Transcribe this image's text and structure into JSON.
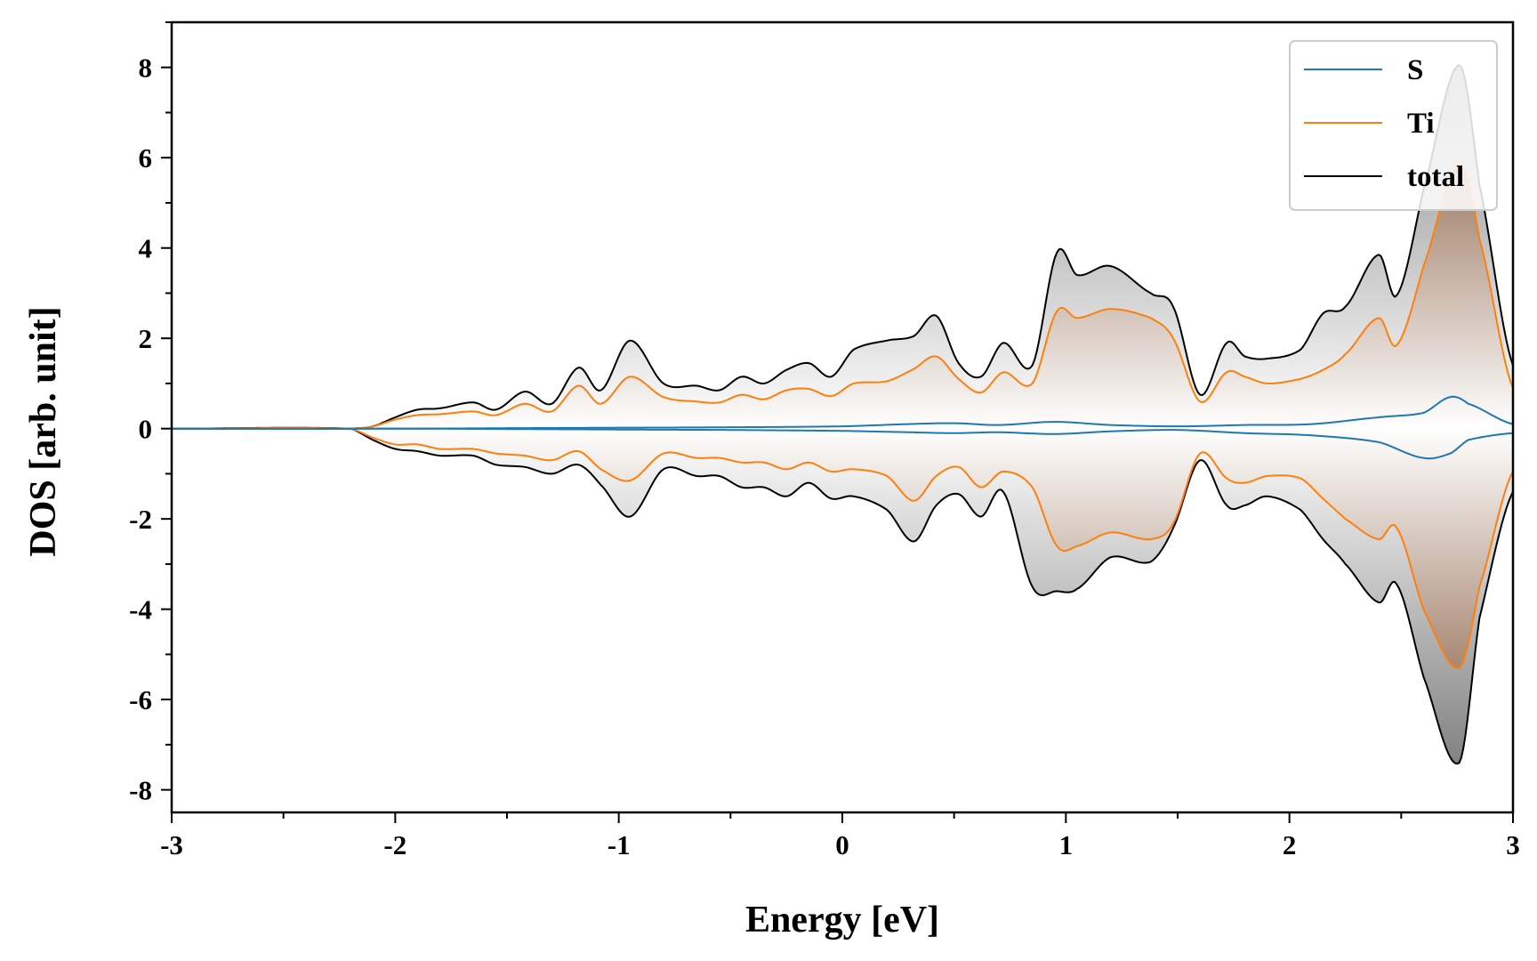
{
  "chart_data": {
    "type": "line",
    "xlabel": "Energy [eV]",
    "ylabel": "DOS [arb. unit]",
    "xlim": [
      -3,
      3
    ],
    "ylim": [
      -8.5,
      9
    ],
    "x_ticks": [
      -3,
      -2,
      -1,
      0,
      1,
      2,
      3
    ],
    "y_ticks": [
      -8,
      -6,
      -4,
      -2,
      0,
      2,
      4,
      6,
      8
    ],
    "grid": false,
    "legend_position": "top-right",
    "fill_between_spins": true,
    "series": [
      {
        "name": "S",
        "color": "#1f77b4",
        "x": [
          -3.0,
          -2.2,
          -2.1,
          -1.9,
          -1.5,
          -1.0,
          -0.5,
          0.0,
          0.3,
          0.5,
          0.7,
          0.95,
          1.2,
          1.5,
          1.8,
          2.1,
          2.4,
          2.6,
          2.72,
          2.8,
          3.0
        ],
        "spin_up": [
          0.0,
          0.0,
          0.0,
          0.0,
          0.01,
          0.02,
          0.03,
          0.05,
          0.1,
          0.12,
          0.08,
          0.15,
          0.08,
          0.05,
          0.08,
          0.1,
          0.25,
          0.35,
          0.7,
          0.55,
          0.1
        ],
        "spin_down": [
          0.0,
          0.0,
          0.0,
          0.0,
          -0.01,
          -0.02,
          -0.03,
          -0.05,
          -0.08,
          -0.1,
          -0.08,
          -0.12,
          -0.06,
          -0.03,
          -0.1,
          -0.15,
          -0.3,
          -0.65,
          -0.55,
          -0.25,
          -0.1
        ]
      },
      {
        "name": "Ti",
        "color": "#ff7f0e",
        "x": [
          -3.0,
          -2.2,
          -2.1,
          -2.0,
          -1.9,
          -1.8,
          -1.65,
          -1.55,
          -1.42,
          -1.3,
          -1.18,
          -1.08,
          -0.95,
          -0.8,
          -0.65,
          -0.55,
          -0.45,
          -0.35,
          -0.25,
          -0.15,
          -0.05,
          0.05,
          0.2,
          0.32,
          0.42,
          0.52,
          0.62,
          0.72,
          0.85,
          0.96,
          1.05,
          1.2,
          1.38,
          1.48,
          1.6,
          1.72,
          1.8,
          1.9,
          2.05,
          2.15,
          2.25,
          2.4,
          2.48,
          2.6,
          2.76,
          2.85,
          3.0
        ],
        "spin_up": [
          0.0,
          0.0,
          0.05,
          0.2,
          0.3,
          0.32,
          0.38,
          0.3,
          0.55,
          0.38,
          0.95,
          0.55,
          1.15,
          0.7,
          0.6,
          0.58,
          0.75,
          0.65,
          0.85,
          0.88,
          0.72,
          1.0,
          1.05,
          1.32,
          1.6,
          1.1,
          0.8,
          1.25,
          1.0,
          2.6,
          2.45,
          2.65,
          2.45,
          2.0,
          0.6,
          1.25,
          1.15,
          1.0,
          1.1,
          1.3,
          1.65,
          2.45,
          1.85,
          3.6,
          5.9,
          4.2,
          0.9
        ],
        "spin_down": [
          0.0,
          0.0,
          -0.2,
          -0.35,
          -0.35,
          -0.45,
          -0.45,
          -0.55,
          -0.6,
          -0.7,
          -0.5,
          -0.9,
          -1.15,
          -0.55,
          -0.65,
          -0.65,
          -0.75,
          -0.75,
          -0.9,
          -0.75,
          -0.95,
          -0.9,
          -1.05,
          -1.6,
          -1.05,
          -0.85,
          -1.3,
          -0.95,
          -1.3,
          -2.6,
          -2.6,
          -2.3,
          -2.45,
          -2.1,
          -0.55,
          -1.1,
          -1.2,
          -1.05,
          -1.1,
          -1.55,
          -2.0,
          -2.45,
          -2.2,
          -4.0,
          -5.3,
          -3.5,
          -0.95
        ]
      },
      {
        "name": "total",
        "color": "#000000",
        "x": [
          -3.0,
          -2.2,
          -2.1,
          -2.0,
          -1.9,
          -1.8,
          -1.65,
          -1.55,
          -1.42,
          -1.3,
          -1.18,
          -1.08,
          -0.95,
          -0.8,
          -0.65,
          -0.55,
          -0.45,
          -0.35,
          -0.25,
          -0.15,
          -0.05,
          0.05,
          0.2,
          0.32,
          0.42,
          0.52,
          0.62,
          0.72,
          0.85,
          0.96,
          1.05,
          1.2,
          1.38,
          1.48,
          1.6,
          1.72,
          1.8,
          1.9,
          2.05,
          2.15,
          2.25,
          2.4,
          2.48,
          2.6,
          2.76,
          2.85,
          3.0
        ],
        "spin_up": [
          0.0,
          0.0,
          0.05,
          0.25,
          0.42,
          0.45,
          0.58,
          0.42,
          0.82,
          0.55,
          1.35,
          0.85,
          1.95,
          1.0,
          0.95,
          0.85,
          1.15,
          1.0,
          1.3,
          1.45,
          1.15,
          1.75,
          1.95,
          2.05,
          2.5,
          1.45,
          1.15,
          1.9,
          1.4,
          3.9,
          3.4,
          3.6,
          3.0,
          2.7,
          0.75,
          1.9,
          1.6,
          1.55,
          1.75,
          2.55,
          2.7,
          3.85,
          2.95,
          5.3,
          8.05,
          5.4,
          1.4
        ],
        "spin_down": [
          0.0,
          0.0,
          -0.25,
          -0.45,
          -0.5,
          -0.6,
          -0.6,
          -0.8,
          -0.85,
          -1.0,
          -0.8,
          -1.25,
          -1.95,
          -0.9,
          -1.05,
          -1.05,
          -1.3,
          -1.3,
          -1.5,
          -1.2,
          -1.55,
          -1.5,
          -1.8,
          -2.5,
          -1.7,
          -1.45,
          -1.95,
          -1.4,
          -3.5,
          -3.6,
          -3.55,
          -2.85,
          -2.95,
          -2.2,
          -0.7,
          -1.7,
          -1.7,
          -1.5,
          -1.8,
          -2.45,
          -3.0,
          -3.85,
          -3.45,
          -5.5,
          -7.4,
          -4.2,
          -1.4
        ]
      }
    ]
  }
}
